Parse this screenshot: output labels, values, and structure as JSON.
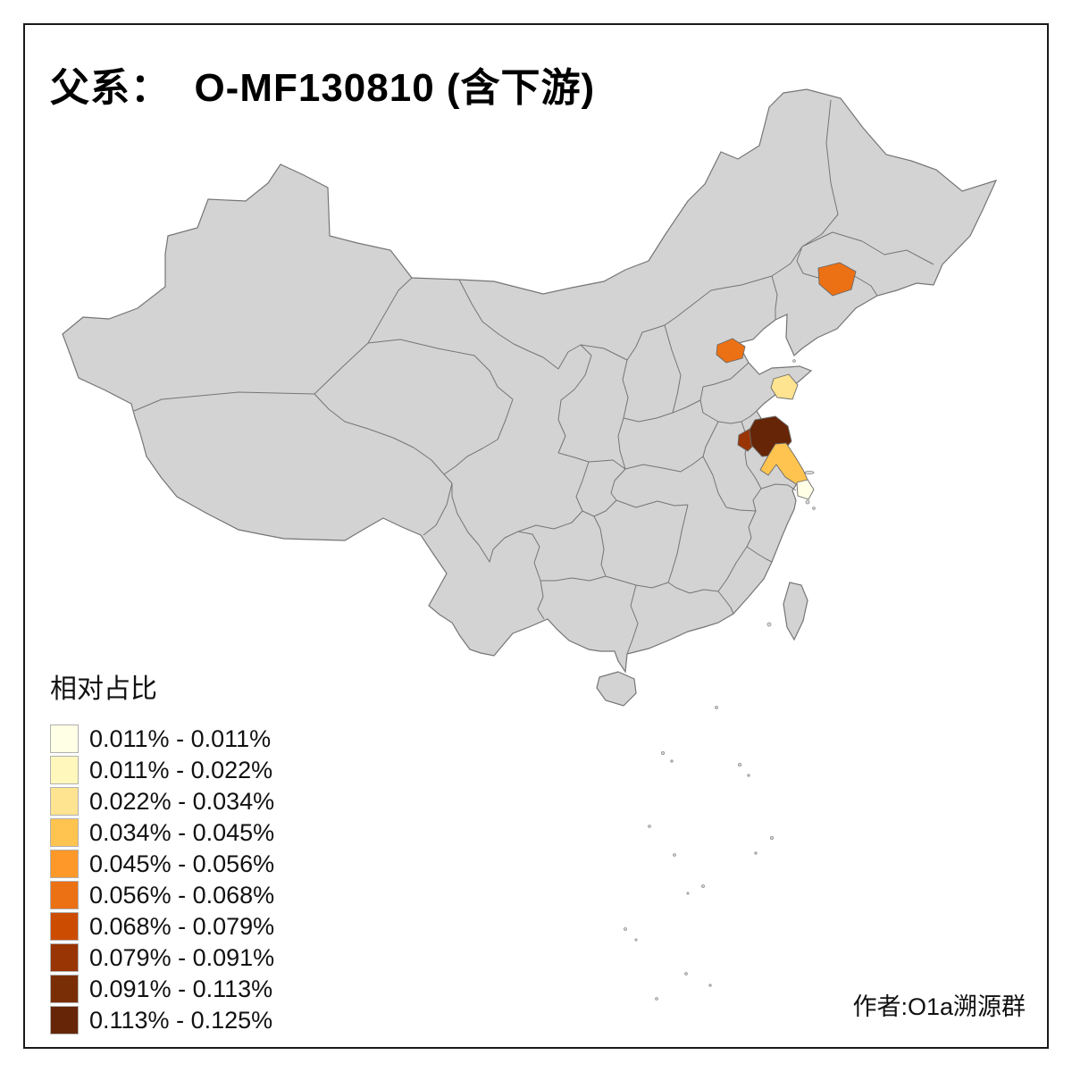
{
  "frame": {
    "border_color": "#1a1a1a",
    "background": "#ffffff"
  },
  "title": {
    "text": "父系：  O-MF130810 (含下游)"
  },
  "legend": {
    "title": "相对占比",
    "entries": [
      {
        "label": "0.011% - 0.011%",
        "color": "#FFFFE5"
      },
      {
        "label": "0.011% - 0.022%",
        "color": "#FFF7BC"
      },
      {
        "label": "0.022% - 0.034%",
        "color": "#FEE391"
      },
      {
        "label": "0.034% - 0.045%",
        "color": "#FEC44F"
      },
      {
        "label": "0.045% - 0.056%",
        "color": "#FE9929"
      },
      {
        "label": "0.056% - 0.068%",
        "color": "#EC7014"
      },
      {
        "label": "0.068% - 0.079%",
        "color": "#CC4C02"
      },
      {
        "label": "0.079% - 0.091%",
        "color": "#993404"
      },
      {
        "label": "0.091% - 0.113%",
        "color": "#7A2E05"
      },
      {
        "label": "0.113% - 0.125%",
        "color": "#662506"
      }
    ]
  },
  "credit": "作者:O1a溯源群",
  "map": {
    "land_fill": "#D3D3D3",
    "border_color": "#757575",
    "highlighted_regions": [
      {
        "id": "region-northeast",
        "range": "0.056% - 0.068%",
        "color": "#EC7014"
      },
      {
        "id": "region-beijing",
        "range": "0.056% - 0.068%",
        "color": "#EC7014"
      },
      {
        "id": "region-shandong-coast",
        "range": "0.022% - 0.034%",
        "color": "#FEE391"
      },
      {
        "id": "region-huai-dark",
        "range": "0.113% - 0.125%",
        "color": "#662506"
      },
      {
        "id": "region-huai-west",
        "range": "0.079% - 0.091%",
        "color": "#993404"
      },
      {
        "id": "region-jiangsu-coast",
        "range": "0.034% - 0.045%",
        "color": "#FEC44F"
      },
      {
        "id": "region-shanghai-pale",
        "range": "0.011% - 0.011%",
        "color": "#FFFFE5"
      }
    ]
  }
}
